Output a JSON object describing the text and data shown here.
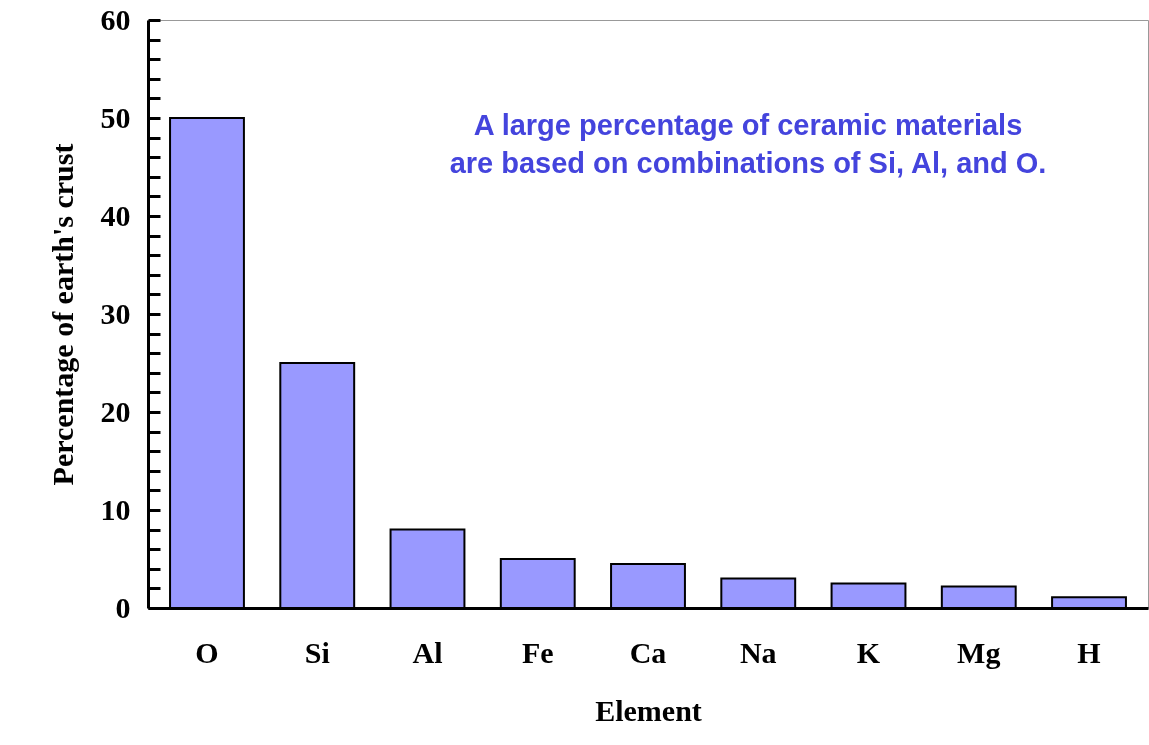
{
  "chart_data": {
    "type": "bar",
    "xlabel": "Element",
    "ylabel": "Percentage of earth's crust",
    "categories": [
      "O",
      "Si",
      "Al",
      "Fe",
      "Ca",
      "Na",
      "K",
      "Mg",
      "H"
    ],
    "values": [
      50,
      25,
      8,
      5,
      4.5,
      3,
      2.5,
      2.2,
      1.1
    ],
    "color": "#9999ff",
    "ylim": [
      0,
      60
    ],
    "yticks": [
      0,
      {
        "value": 2,
        "label": null
      },
      {
        "value": 4,
        "label": null
      },
      {
        "value": 6,
        "label": null
      },
      {
        "value": 8,
        "label": null
      },
      10,
      {
        "value": 12,
        "label": null
      },
      {
        "value": 14,
        "label": null
      },
      {
        "value": 16,
        "label": null
      },
      {
        "value": 18,
        "label": null
      },
      20,
      {
        "value": 22,
        "label": null
      },
      {
        "value": 24,
        "label": null
      },
      {
        "value": 26,
        "label": null
      },
      {
        "value": 28,
        "label": null
      },
      30,
      {
        "value": 32,
        "label": null
      },
      {
        "value": 34,
        "label": null
      },
      {
        "value": 36,
        "label": null
      },
      {
        "value": 38,
        "label": null
      },
      40,
      {
        "value": 42,
        "label": null
      },
      {
        "value": 44,
        "label": null
      },
      {
        "value": 46,
        "label": null
      },
      {
        "value": 48,
        "label": null
      },
      50,
      {
        "value": 52,
        "label": null
      },
      {
        "value": 54,
        "label": null
      },
      {
        "value": 56,
        "label": null
      },
      {
        "value": 58,
        "label": null
      },
      60
    ],
    "annotations": [
      "A large percentage of ceramic materials\nare based on combinations of Si, Al, and O."
    ]
  }
}
